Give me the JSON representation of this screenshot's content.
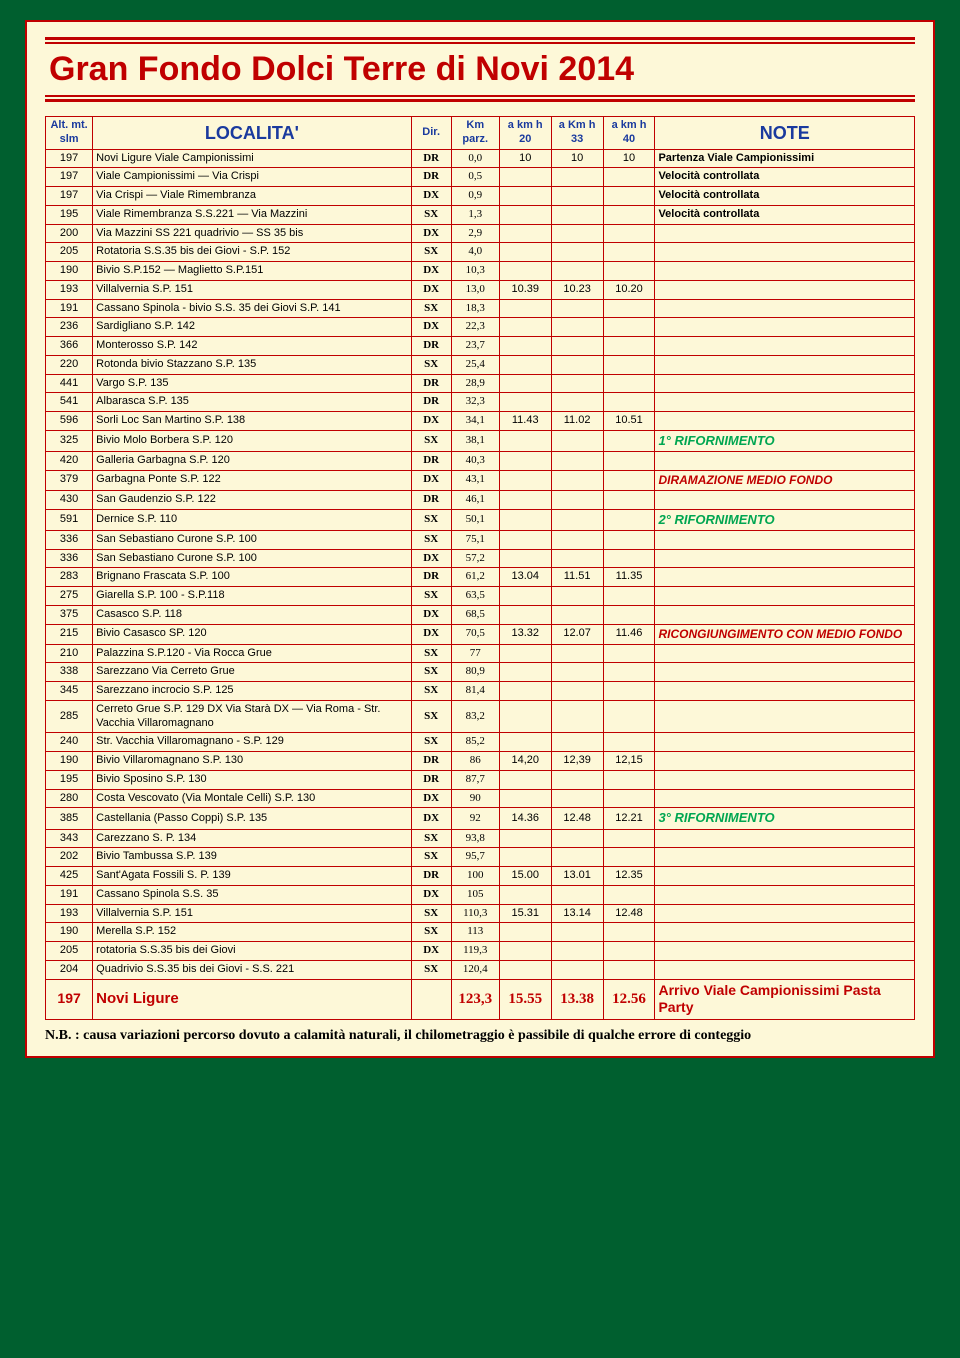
{
  "title": "Gran Fondo Dolci Terre di Novi 2014",
  "headers": {
    "alt": "Alt. mt.\nslm",
    "loc": "LOCALITA'",
    "dir": "Dir.",
    "km": "Km\nparz.",
    "s20": "a km h\n20",
    "s33": "a Km h\n33",
    "s40": "a km h\n40",
    "note": "NOTE"
  },
  "rows": [
    {
      "alt": "197",
      "loc": "Novi Ligure Viale Campionissimi",
      "dir": "DR",
      "km": "0,0",
      "s20": "10",
      "s33": "10",
      "s40": "10",
      "note": "Partenza Viale Campionissimi",
      "nt": "black"
    },
    {
      "alt": "197",
      "loc": "Viale Campionissimi — Via Crispi",
      "dir": "DR",
      "km": "0,5",
      "s20": "",
      "s33": "",
      "s40": "",
      "note": "Velocità controllata",
      "nt": "black"
    },
    {
      "alt": "197",
      "loc": "Via Crispi — Viale Rimembranza",
      "dir": "DX",
      "km": "0,9",
      "s20": "",
      "s33": "",
      "s40": "",
      "note": "Velocità controllata",
      "nt": "black"
    },
    {
      "alt": "195",
      "loc": "Viale Rimembranza S.S.221 — Via Mazzini",
      "dir": "SX",
      "km": "1,3",
      "s20": "",
      "s33": "",
      "s40": "",
      "note": "Velocità controllata",
      "nt": "black"
    },
    {
      "alt": "200",
      "loc": "Via Mazzini SS 221 quadrivio — SS 35 bis",
      "dir": "DX",
      "km": "2,9",
      "s20": "",
      "s33": "",
      "s40": "",
      "note": ""
    },
    {
      "alt": "205",
      "loc": "Rotatoria S.S.35 bis dei Giovi - S.P. 152",
      "dir": "SX",
      "km": "4,0",
      "s20": "",
      "s33": "",
      "s40": "",
      "note": ""
    },
    {
      "alt": "190",
      "loc": "Bivio S.P.152 — Maglietto S.P.151",
      "dir": "DX",
      "km": "10,3",
      "s20": "",
      "s33": "",
      "s40": "",
      "note": ""
    },
    {
      "alt": "193",
      "loc": "Villalvernia S.P. 151",
      "dir": "DX",
      "km": "13,0",
      "s20": "10.39",
      "s33": "10.23",
      "s40": "10.20",
      "note": ""
    },
    {
      "alt": "191",
      "loc": "Cassano Spinola - bivio S.S. 35 dei Giovi S.P. 141",
      "dir": "SX",
      "km": "18,3",
      "s20": "",
      "s33": "",
      "s40": "",
      "note": ""
    },
    {
      "alt": "236",
      "loc": "Sardigliano S.P. 142",
      "dir": "DX",
      "km": "22,3",
      "s20": "",
      "s33": "",
      "s40": "",
      "note": ""
    },
    {
      "alt": "366",
      "loc": "Monterosso S.P. 142",
      "dir": "DR",
      "km": "23,7",
      "s20": "",
      "s33": "",
      "s40": "",
      "note": ""
    },
    {
      "alt": "220",
      "loc": "Rotonda bivio Stazzano S.P. 135",
      "dir": "SX",
      "km": "25,4",
      "s20": "",
      "s33": "",
      "s40": "",
      "note": ""
    },
    {
      "alt": "441",
      "loc": "Vargo S.P. 135",
      "dir": "DR",
      "km": "28,9",
      "s20": "",
      "s33": "",
      "s40": "",
      "note": ""
    },
    {
      "alt": "541",
      "loc": "Albarasca S.P. 135",
      "dir": "DR",
      "km": "32,3",
      "s20": "",
      "s33": "",
      "s40": "",
      "note": ""
    },
    {
      "alt": "596",
      "loc": "Sorli Loc San Martino S.P. 138",
      "dir": "DX",
      "km": "34,1",
      "s20": "11.43",
      "s33": "11.02",
      "s40": "10.51",
      "note": ""
    },
    {
      "alt": "325",
      "loc": "Bivio Molo Borbera S.P. 120",
      "dir": "SX",
      "km": "38,1",
      "s20": "",
      "s33": "",
      "s40": "",
      "note": "1° RIFORNIMENTO",
      "nt": "green"
    },
    {
      "alt": "420",
      "loc": "Galleria Garbagna S.P. 120",
      "dir": "DR",
      "km": "40,3",
      "s20": "",
      "s33": "",
      "s40": "",
      "note": ""
    },
    {
      "alt": "379",
      "loc": "Garbagna Ponte S.P. 122",
      "dir": "DX",
      "km": "43,1",
      "s20": "",
      "s33": "",
      "s40": "",
      "note": "DIRAMAZIONE MEDIO FONDO",
      "nt": "red"
    },
    {
      "alt": "430",
      "loc": "San Gaudenzio S.P. 122",
      "dir": "DR",
      "km": "46,1",
      "s20": "",
      "s33": "",
      "s40": "",
      "note": ""
    },
    {
      "alt": "591",
      "loc": "Dernice S.P. 110",
      "dir": "SX",
      "km": "50,1",
      "s20": "",
      "s33": "",
      "s40": "",
      "note": "2° RIFORNIMENTO",
      "nt": "green"
    },
    {
      "alt": "336",
      "loc": "San Sebastiano Curone S.P. 100",
      "dir": "SX",
      "km": "75,1",
      "s20": "",
      "s33": "",
      "s40": "",
      "note": ""
    },
    {
      "alt": "336",
      "loc": "San Sebastiano Curone S.P. 100",
      "dir": "DX",
      "km": "57,2",
      "s20": "",
      "s33": "",
      "s40": "",
      "note": ""
    },
    {
      "alt": "283",
      "loc": "Brignano Frascata S.P. 100",
      "dir": "DR",
      "km": "61,2",
      "s20": "13.04",
      "s33": "11.51",
      "s40": "11.35",
      "note": ""
    },
    {
      "alt": "275",
      "loc": "Giarella S.P. 100 - S.P.118",
      "dir": "SX",
      "km": "63,5",
      "s20": "",
      "s33": "",
      "s40": "",
      "note": ""
    },
    {
      "alt": "375",
      "loc": "Casasco S.P. 118",
      "dir": "DX",
      "km": "68,5",
      "s20": "",
      "s33": "",
      "s40": "",
      "note": ""
    },
    {
      "alt": "215",
      "loc": "Bivio Casasco SP. 120",
      "dir": "DX",
      "km": "70,5",
      "s20": "13.32",
      "s33": "12.07",
      "s40": "11.46",
      "note": "RICONGIUNGIMENTO CON MEDIO FONDO",
      "nt": "red"
    },
    {
      "alt": "210",
      "loc": "Palazzina S.P.120 - Via Rocca Grue",
      "dir": "SX",
      "km": "77",
      "s20": "",
      "s33": "",
      "s40": "",
      "note": ""
    },
    {
      "alt": "338",
      "loc": "Sarezzano Via Cerreto Grue",
      "dir": "SX",
      "km": "80,9",
      "s20": "",
      "s33": "",
      "s40": "",
      "note": ""
    },
    {
      "alt": "345",
      "loc": "Sarezzano incrocio S.P. 125",
      "dir": "SX",
      "km": "81,4",
      "s20": "",
      "s33": "",
      "s40": "",
      "note": ""
    },
    {
      "alt": "285",
      "loc": "Cerreto Grue S.P. 129 DX Via Starà DX — Via Roma - Str. Vacchia Villaromagnano",
      "dir": "SX",
      "km": "83,2",
      "s20": "",
      "s33": "",
      "s40": "",
      "note": ""
    },
    {
      "alt": "240",
      "loc": "Str. Vacchia Villaromagnano - S.P. 129",
      "dir": "SX",
      "km": "85,2",
      "s20": "",
      "s33": "",
      "s40": "",
      "note": ""
    },
    {
      "alt": "190",
      "loc": "Bivio Villaromagnano S.P. 130",
      "dir": "DR",
      "km": "86",
      "s20": "14,20",
      "s33": "12,39",
      "s40": "12,15",
      "note": ""
    },
    {
      "alt": "195",
      "loc": "Bivio Sposino S.P. 130",
      "dir": "DR",
      "km": "87,7",
      "s20": "",
      "s33": "",
      "s40": "",
      "note": ""
    },
    {
      "alt": "280",
      "loc": "Costa Vescovato (Via Montale Celli) S.P. 130",
      "dir": "DX",
      "km": "90",
      "s20": "",
      "s33": "",
      "s40": "",
      "note": ""
    },
    {
      "alt": "385",
      "loc": "Castellania (Passo Coppi) S.P. 135",
      "dir": "DX",
      "km": "92",
      "s20": "14.36",
      "s33": "12.48",
      "s40": "12.21",
      "note": "3° RIFORNIMENTO",
      "nt": "green"
    },
    {
      "alt": "343",
      "loc": "Carezzano S. P. 134",
      "dir": "SX",
      "km": "93,8",
      "s20": "",
      "s33": "",
      "s40": "",
      "note": ""
    },
    {
      "alt": "202",
      "loc": "Bivio Tambussa S.P. 139",
      "dir": "SX",
      "km": "95,7",
      "s20": "",
      "s33": "",
      "s40": "",
      "note": ""
    },
    {
      "alt": "425",
      "loc": "Sant'Agata Fossili S. P. 139",
      "dir": "DR",
      "km": "100",
      "s20": "15.00",
      "s33": "13.01",
      "s40": "12.35",
      "note": ""
    },
    {
      "alt": "191",
      "loc": "Cassano Spinola S.S. 35",
      "dir": "DX",
      "km": "105",
      "s20": "",
      "s33": "",
      "s40": "",
      "note": ""
    },
    {
      "alt": "193",
      "loc": "Villalvernia S.P. 151",
      "dir": "SX",
      "km": "110,3",
      "s20": "15.31",
      "s33": "13.14",
      "s40": "12.48",
      "note": ""
    },
    {
      "alt": "190",
      "loc": "Merella S.P. 152",
      "dir": "SX",
      "km": "113",
      "s20": "",
      "s33": "",
      "s40": "",
      "note": ""
    },
    {
      "alt": "205",
      "loc": "rotatoria S.S.35 bis dei Giovi",
      "dir": "DX",
      "km": "119,3",
      "s20": "",
      "s33": "",
      "s40": "",
      "note": ""
    },
    {
      "alt": "204",
      "loc": "Quadrivio S.S.35 bis dei Giovi - S.S. 221",
      "dir": "SX",
      "km": "120,4",
      "s20": "",
      "s33": "",
      "s40": "",
      "note": ""
    }
  ],
  "final": {
    "alt": "197",
    "loc": "Novi Ligure",
    "dir": "",
    "km": "123,3",
    "s20": "15.55",
    "s33": "13.38",
    "s40": "12.56",
    "note": "Arrivo Viale Campionissimi Pasta Party"
  },
  "footnote": "N.B. : causa variazioni percorso dovuto a calamità naturali, il chilometraggio è passibile di qualche errore di conteggio"
}
